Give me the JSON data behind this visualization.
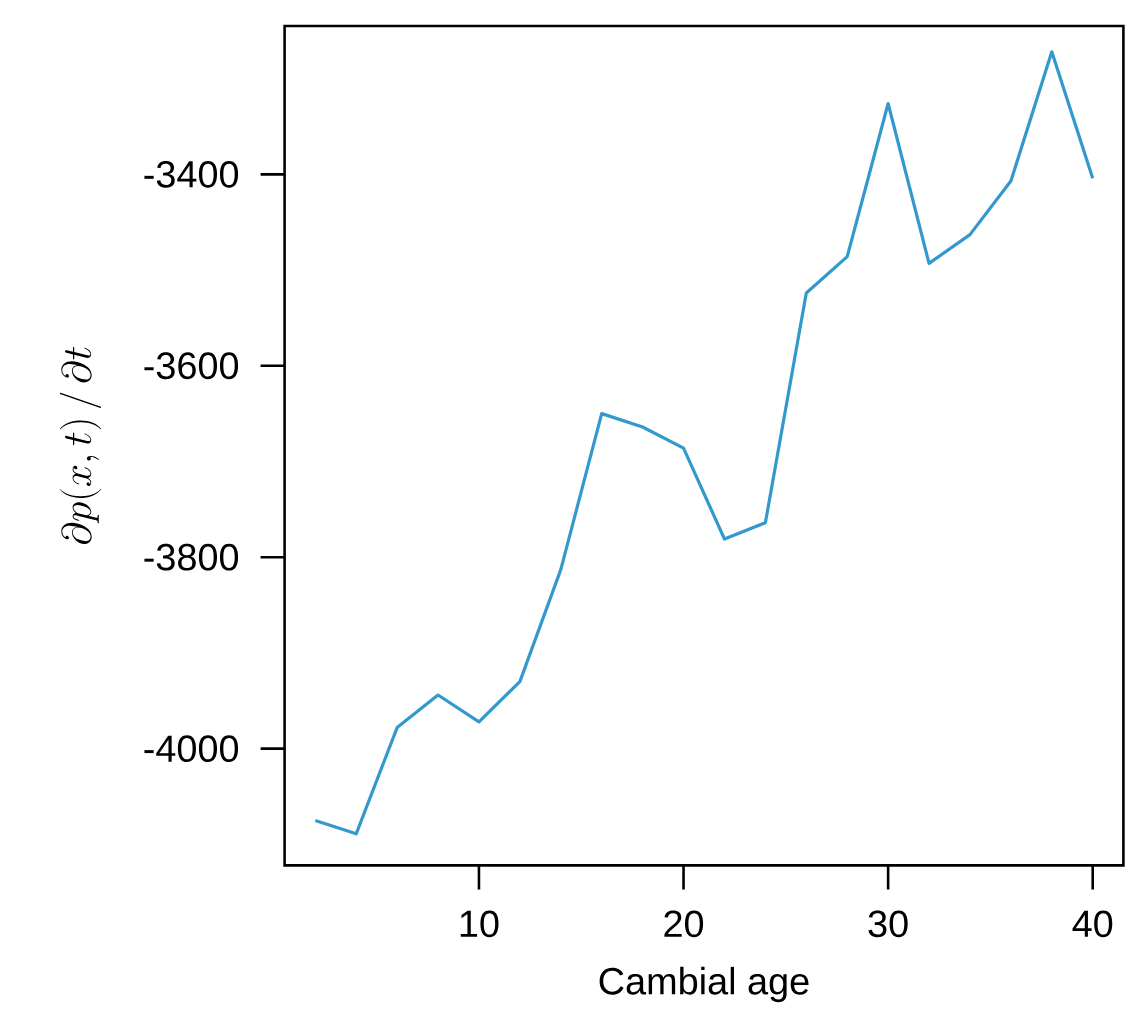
{
  "chart_data": {
    "type": "line",
    "xlabel": "Cambial age",
    "ylabel": "\\partial p(x, t) \\,/\\, \\partial t",
    "x": [
      2,
      4,
      6,
      8,
      10,
      12,
      14,
      16,
      18,
      20,
      22,
      24,
      26,
      28,
      30,
      32,
      34,
      36,
      38,
      40
    ],
    "series": [
      {
        "color": "#3399cc",
        "values": [
          -4075,
          -4089,
          -3978,
          -3944,
          -3972,
          -3930,
          -3813,
          -3650,
          -3664,
          -3686,
          -3781,
          -3764,
          -3524,
          -3486,
          -3326,
          -3493,
          -3463,
          -3407,
          -3272,
          -3404
        ]
      }
    ],
    "xlim": [
      0.5,
      41.5
    ],
    "ylim": [
      -4122,
      -3245
    ],
    "xticks": [
      10,
      20,
      30,
      40
    ],
    "yticks": [
      -4000,
      -3800,
      -3600,
      -3400
    ],
    "grid": false,
    "marker": "none",
    "line_style": "solid"
  }
}
